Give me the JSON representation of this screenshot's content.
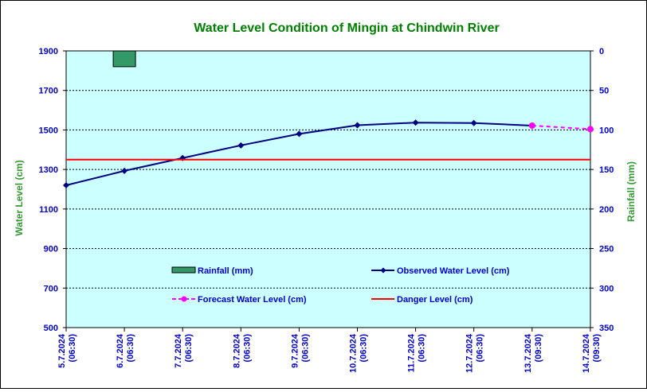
{
  "chart_data": {
    "type": "line",
    "title": "Water Level Condition of Mingin at Chindwin River",
    "ylabel": "Water Level (cm)",
    "y2label": "Rainfall (mm)",
    "ylim": [
      500,
      1900
    ],
    "y2lim": [
      0,
      350
    ],
    "y2_inverted": true,
    "yticks": [
      "1900",
      "1700",
      "1500",
      "1300",
      "1100",
      "900",
      "700",
      "500"
    ],
    "y2ticks": [
      "0",
      "50",
      "100",
      "150",
      "200",
      "250",
      "300",
      "350"
    ],
    "categories": [
      [
        "5.7.2024",
        "(06:30)"
      ],
      [
        "6.7.2024",
        "(06:30)"
      ],
      [
        "7.7.2024",
        "(06:30)"
      ],
      [
        "8.7.2024",
        "(06:30)"
      ],
      [
        "9.7.2024",
        "(06:30)"
      ],
      [
        "10.7.2024",
        "(06:30)"
      ],
      [
        "11.7.2024",
        "(06:30)"
      ],
      [
        "12.7.2024",
        "(06:30)"
      ],
      [
        "13.7.2024",
        "(09:30)"
      ],
      [
        "14.7.2024",
        "(09:30)"
      ]
    ],
    "grid": true,
    "series": [
      {
        "name": "Rainfall (mm)",
        "type": "bar",
        "axis": "right",
        "color": "#339966",
        "values": [
          null,
          20,
          null,
          null,
          null,
          null,
          null,
          null,
          null,
          null
        ]
      },
      {
        "name": "Observed Water Level (cm)",
        "type": "line",
        "axis": "left",
        "color": "#000080",
        "marker": "diamond",
        "values": [
          1220,
          1293,
          1358,
          1422,
          1480,
          1524,
          1537,
          1535,
          1522,
          null
        ]
      },
      {
        "name": "Forecast Water Level (cm)",
        "type": "line",
        "axis": "left",
        "color": "#FF00FF",
        "dash": true,
        "marker": "circle",
        "values": [
          null,
          null,
          null,
          null,
          null,
          null,
          null,
          null,
          1522,
          1504
        ]
      },
      {
        "name": "Danger Level (cm)",
        "type": "hline",
        "axis": "left",
        "color": "#FF0000",
        "value": 1350
      }
    ],
    "colors": {
      "plot_bg": "#CCFFFF",
      "title": "#008000",
      "axis_title": "#339933",
      "tick_label": "#0000CC",
      "legend_text": "#0000CC"
    }
  }
}
